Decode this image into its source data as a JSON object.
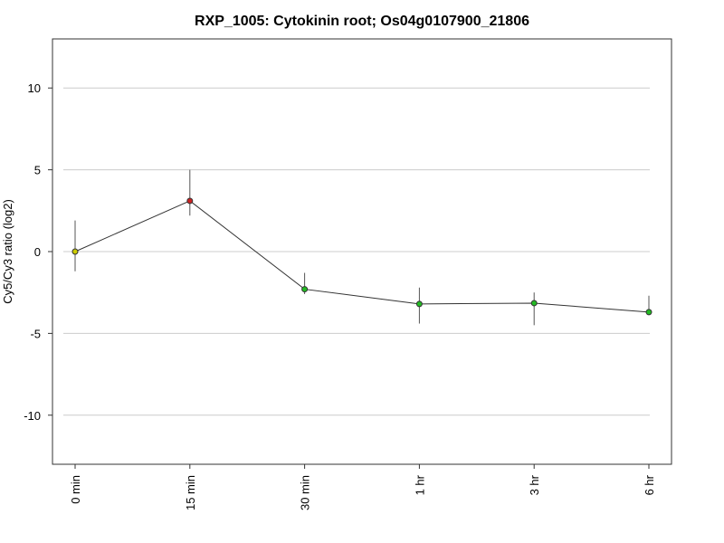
{
  "chart_data": {
    "type": "line",
    "title": "RXP_1005: Cytokinin root; Os04g0107900_21806",
    "xlabel": "",
    "ylabel": "Cy5/Cy3 ratio (log2)",
    "categories": [
      "0 min",
      "15 min",
      "30 min",
      "1 hr",
      "3 hr",
      "6 hr"
    ],
    "values": [
      0.0,
      3.1,
      -2.3,
      -3.2,
      -3.15,
      -3.7
    ],
    "error_low": [
      -1.2,
      2.2,
      -2.6,
      -4.4,
      -4.5,
      -3.7
    ],
    "error_high": [
      1.9,
      5.0,
      -1.3,
      -2.2,
      -2.5,
      -2.7
    ],
    "point_colors": [
      "#cccc00",
      "#cc2222",
      "#22bb22",
      "#22bb22",
      "#22bb22",
      "#22bb22"
    ],
    "yticks": [
      10,
      5,
      0,
      -5,
      -10
    ],
    "ytick_labels": [
      "10",
      "5",
      "0",
      "-5",
      "-10"
    ],
    "ylim": [
      -13,
      13
    ],
    "grid": true,
    "line_color": "#333333",
    "grid_color": "#cccccc"
  }
}
